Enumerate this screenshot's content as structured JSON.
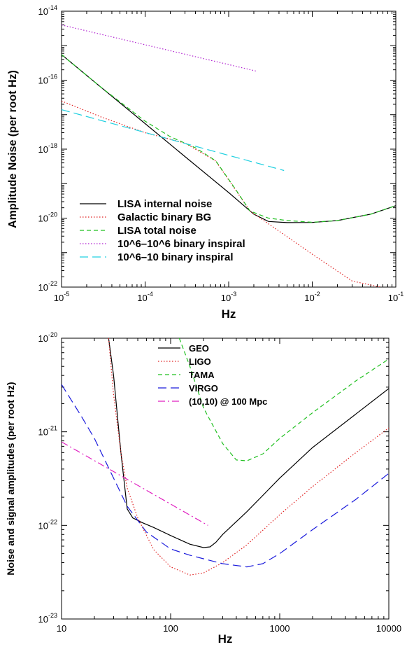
{
  "chart_data": [
    {
      "type": "line",
      "xlabel": "Hz",
      "ylabel": "Amplitude Noise (per root Hz)",
      "xscale": "log",
      "yscale": "log",
      "xlim": [
        1e-05,
        0.1
      ],
      "ylim": [
        1e-22,
        1e-14
      ],
      "x_ticks": [
        {
          "value": 1e-05,
          "base": "10",
          "exp": "-5"
        },
        {
          "value": 0.0001,
          "base": "10",
          "exp": "-4"
        },
        {
          "value": 0.001,
          "base": "10",
          "exp": "-3"
        },
        {
          "value": 0.01,
          "base": "10",
          "exp": "-2"
        },
        {
          "value": 0.1,
          "base": "10",
          "exp": "-1"
        }
      ],
      "y_ticks": [
        {
          "value": 1e-22,
          "base": "10",
          "exp": "-22"
        },
        {
          "value": 1e-20,
          "base": "10",
          "exp": "-20"
        },
        {
          "value": 1e-18,
          "base": "10",
          "exp": "-18"
        },
        {
          "value": 1e-16,
          "base": "10",
          "exp": "-16"
        },
        {
          "value": 1e-14,
          "base": "10",
          "exp": "-14"
        }
      ],
      "grid": false,
      "legend_position": "lower-left",
      "series": [
        {
          "name": "LISA  internal noise",
          "color": "#000000",
          "dash": "solid",
          "x": [
            1e-05,
            3e-05,
            0.0001,
            0.0003,
            0.001,
            0.002,
            0.003,
            0.005,
            0.01,
            0.02,
            0.05,
            0.1
          ],
          "y": [
            5.5e-16,
            6.1e-17,
            5.5e-18,
            6.1e-19,
            5.5e-20,
            1.3e-20,
            8e-21,
            7.4e-21,
            7.5e-21,
            8.5e-21,
            1.3e-20,
            2.3e-20
          ]
        },
        {
          "name": "Galactic binary BG",
          "color": "#e02020",
          "dash": "dotted",
          "x": [
            1e-05,
            3e-05,
            0.0001,
            0.0003,
            0.0007,
            0.0018,
            0.005,
            0.01,
            0.03,
            0.1
          ],
          "y": [
            2.5e-17,
            8.5e-18,
            3e-18,
            1.5e-18,
            4.5e-19,
            1.6e-20,
            2.9e-21,
            9e-22,
            1.5e-22,
            8e-23
          ]
        },
        {
          "name": "LISA  total noise",
          "color": "#20c020",
          "dash": "dashed",
          "x": [
            1e-05,
            3e-05,
            0.0001,
            0.0002,
            0.0004,
            0.0007,
            0.0012,
            0.0018,
            0.003,
            0.005,
            0.01,
            0.02,
            0.05,
            0.1
          ],
          "y": [
            5.5e-16,
            6.1e-17,
            6.5e-18,
            2.3e-18,
            1.1e-18,
            4.6e-19,
            7e-20,
            1.6e-20,
            1e-20,
            8.5e-21,
            7.6e-21,
            8.5e-21,
            1.3e-20,
            2.3e-20
          ]
        },
        {
          "name": "10^6–10^6  binary inspiral",
          "color": "#b020d0",
          "dash": "dotted",
          "x": [
            1e-05,
            0.0022
          ],
          "y": [
            4e-15,
            1.8e-16
          ]
        },
        {
          "name": "10^6–10 binary inspiral",
          "color": "#20d0e0",
          "dash": "longdash",
          "x": [
            1e-05,
            0.0046
          ],
          "y": [
            1.4e-17,
            2.4e-19
          ]
        }
      ]
    },
    {
      "type": "line",
      "xlabel": "Hz",
      "ylabel": "Noise and signal amplitudes (per root Hz)",
      "xscale": "log",
      "yscale": "log",
      "xlim": [
        10,
        10000
      ],
      "ylim": [
        1e-23,
        1e-20
      ],
      "x_ticks": [
        {
          "value": 10,
          "base": "10",
          "exp": ""
        },
        {
          "value": 100,
          "base": "100",
          "exp": ""
        },
        {
          "value": 1000,
          "base": "1000",
          "exp": ""
        },
        {
          "value": 10000,
          "base": "10000",
          "exp": ""
        }
      ],
      "y_ticks": [
        {
          "value": 1e-23,
          "base": "10",
          "exp": "-23"
        },
        {
          "value": 1e-22,
          "base": "10",
          "exp": "-22"
        },
        {
          "value": 1e-21,
          "base": "10",
          "exp": "-21"
        },
        {
          "value": 1e-20,
          "base": "10",
          "exp": "-20"
        }
      ],
      "grid": false,
      "legend_position": "top-center",
      "series": [
        {
          "name": "GEO",
          "color": "#000000",
          "dash": "solid",
          "x": [
            27,
            30,
            35,
            40,
            45,
            55,
            70,
            100,
            150,
            200,
            230,
            260,
            300,
            500,
            1000,
            2000,
            5000,
            10000
          ],
          "y": [
            1e-20,
            4e-21,
            6e-22,
            1.5e-22,
            1.2e-22,
            1.07e-22,
            9.5e-23,
            7.8e-23,
            6.3e-23,
            5.8e-23,
            5.9e-23,
            6.6e-23,
            8e-23,
            1.4e-22,
            3.2e-22,
            6.8e-22,
            1.55e-21,
            2.9e-21
          ]
        },
        {
          "name": "LIGO",
          "color": "#e02020",
          "dash": "dotted",
          "x": [
            27,
            30,
            35,
            40,
            50,
            70,
            100,
            150,
            200,
            300,
            500,
            1000,
            2000,
            5000,
            10000
          ],
          "y": [
            1e-20,
            2.5e-21,
            6e-22,
            2.5e-22,
            1.2e-22,
            5.5e-23,
            3.6e-23,
            2.95e-23,
            3.1e-23,
            4e-23,
            6.2e-23,
            1.3e-22,
            2.6e-22,
            6e-22,
            1.1e-21
          ]
        },
        {
          "name": "TAMA",
          "color": "#20c020",
          "dash": "dashed",
          "x": [
            120,
            150,
            200,
            300,
            400,
            500,
            700,
            1000,
            2000,
            5000,
            10000
          ],
          "y": [
            1e-20,
            5e-21,
            1.8e-21,
            7.5e-22,
            5e-22,
            4.9e-22,
            5.8e-22,
            8.5e-22,
            1.6e-21,
            3.5e-21,
            6e-21
          ]
        },
        {
          "name": "VIRGO",
          "color": "#1a1adc",
          "dash": "longdash",
          "x": [
            10,
            15,
            20,
            30,
            40,
            60,
            100,
            150,
            200,
            300,
            500,
            700,
            1000,
            2000,
            5000,
            10000
          ],
          "y": [
            3.2e-21,
            1.5e-21,
            8.5e-22,
            3.2e-22,
            1.6e-22,
            8.5e-23,
            5.6e-23,
            4.8e-23,
            4.4e-23,
            3.9e-23,
            3.6e-23,
            3.9e-23,
            5e-23,
            9e-23,
            1.9e-22,
            3.6e-22
          ]
        },
        {
          "name": "(10,10) @ 100 Mpc",
          "color": "#e020c0",
          "dash": "dashdot",
          "x": [
            10,
            220
          ],
          "y": [
            7.8e-22,
            1e-22
          ]
        }
      ]
    }
  ]
}
